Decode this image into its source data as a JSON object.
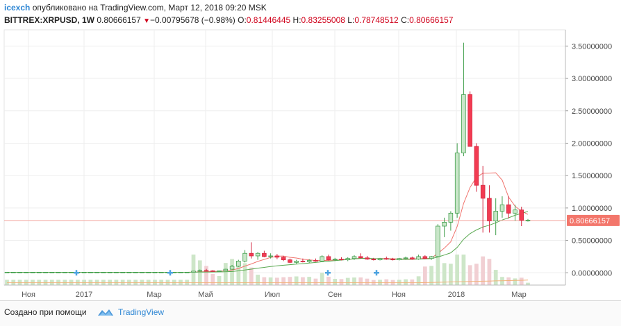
{
  "header": {
    "user": "icexch",
    "published_text": "опубликовано на TradingView.com, Март 12, 2018 09:20 MSK",
    "symbol": "BITTREX:XRPUSD, 1W",
    "last": "0.80666157",
    "down_arrow": "▼",
    "change": "−0.00795678 (−0.98%)",
    "o_label": "O:",
    "o_val": "0.81446445",
    "h_label": "H:",
    "h_val": "0.83255008",
    "l_label": "L:",
    "l_val": "0.78748512",
    "c_label": "C:",
    "c_val": "0.80666157"
  },
  "footer": {
    "created_with": "Создано при помощи",
    "brand": "TradingView"
  },
  "colors": {
    "up": "#c9e6c9",
    "up_border": "#3f9e4a",
    "down": "#f23b52",
    "down_border": "#d3263f",
    "ma_fast": "#f0746e",
    "ma_slow": "#58a84f",
    "ma_vol": "#f2b27a",
    "vol_up": "#cde6c8",
    "vol_down": "#f1cfd3",
    "price_line": "#f4a8a0",
    "price_label": "#f3766b",
    "brand": "#2f87d4"
  },
  "chart_data": {
    "type": "candlestick",
    "x_tick_labels": [
      "Ноя",
      "2017",
      "Мар",
      "Май",
      "Июл",
      "Сен",
      "Ноя",
      "2018",
      "Мар"
    ],
    "y_tick_labels": [
      "3.50000000",
      "3.00000000",
      "2.50000000",
      "2.00000000",
      "1.50000000",
      "1.00000000",
      "0.50000000",
      "0.00000000"
    ],
    "y_ticks": [
      3.5,
      3.0,
      2.5,
      2.0,
      1.5,
      1.0,
      0.5,
      0.0
    ],
    "ylim": [
      -0.19,
      3.75
    ],
    "last_price": 0.80666157,
    "last_price_label": "0.80666157",
    "grid": true,
    "ohlc_approx_weekly": [
      [
        0.008,
        0.009,
        0.007,
        0.008
      ],
      [
        0.008,
        0.009,
        0.007,
        0.008
      ],
      [
        0.008,
        0.009,
        0.007,
        0.008
      ],
      [
        0.008,
        0.009,
        0.007,
        0.008
      ],
      [
        0.008,
        0.009,
        0.007,
        0.008
      ],
      [
        0.008,
        0.009,
        0.007,
        0.008
      ],
      [
        0.008,
        0.009,
        0.007,
        0.008
      ],
      [
        0.008,
        0.009,
        0.007,
        0.008
      ],
      [
        0.008,
        0.009,
        0.007,
        0.008
      ],
      [
        0.008,
        0.009,
        0.007,
        0.008
      ],
      [
        0.008,
        0.009,
        0.007,
        0.008
      ],
      [
        0.008,
        0.009,
        0.007,
        0.008
      ],
      [
        0.008,
        0.009,
        0.007,
        0.008
      ],
      [
        0.008,
        0.009,
        0.007,
        0.008
      ],
      [
        0.008,
        0.009,
        0.007,
        0.008
      ],
      [
        0.008,
        0.009,
        0.007,
        0.008
      ],
      [
        0.008,
        0.009,
        0.007,
        0.008
      ],
      [
        0.008,
        0.009,
        0.007,
        0.008
      ],
      [
        0.008,
        0.009,
        0.007,
        0.008
      ],
      [
        0.008,
        0.009,
        0.007,
        0.008
      ],
      [
        0.008,
        0.009,
        0.007,
        0.008
      ],
      [
        0.008,
        0.009,
        0.007,
        0.008
      ],
      [
        0.008,
        0.009,
        0.007,
        0.008
      ],
      [
        0.008,
        0.009,
        0.007,
        0.008
      ],
      [
        0.008,
        0.009,
        0.007,
        0.008
      ],
      [
        0.008,
        0.009,
        0.007,
        0.008
      ],
      [
        0.008,
        0.009,
        0.007,
        0.008
      ],
      [
        0.008,
        0.009,
        0.007,
        0.008
      ],
      [
        0.008,
        0.009,
        0.007,
        0.008
      ],
      [
        0.008,
        0.03,
        0.006,
        0.025
      ],
      [
        0.025,
        0.05,
        0.02,
        0.035
      ],
      [
        0.035,
        0.06,
        0.028,
        0.03
      ],
      [
        0.03,
        0.04,
        0.025,
        0.028
      ],
      [
        0.028,
        0.035,
        0.024,
        0.03
      ],
      [
        0.03,
        0.06,
        0.028,
        0.055
      ],
      [
        0.055,
        0.12,
        0.05,
        0.1
      ],
      [
        0.1,
        0.2,
        0.09,
        0.18
      ],
      [
        0.18,
        0.35,
        0.16,
        0.3
      ],
      [
        0.3,
        0.47,
        0.22,
        0.26
      ],
      [
        0.26,
        0.32,
        0.2,
        0.3
      ],
      [
        0.3,
        0.34,
        0.24,
        0.25
      ],
      [
        0.25,
        0.3,
        0.22,
        0.26
      ],
      [
        0.26,
        0.29,
        0.21,
        0.24
      ],
      [
        0.24,
        0.26,
        0.18,
        0.2
      ],
      [
        0.2,
        0.22,
        0.15,
        0.16
      ],
      [
        0.16,
        0.2,
        0.14,
        0.18
      ],
      [
        0.18,
        0.22,
        0.16,
        0.17
      ],
      [
        0.17,
        0.21,
        0.15,
        0.19
      ],
      [
        0.19,
        0.22,
        0.17,
        0.18
      ],
      [
        0.18,
        0.27,
        0.17,
        0.25
      ],
      [
        0.25,
        0.28,
        0.19,
        0.2
      ],
      [
        0.2,
        0.23,
        0.18,
        0.21
      ],
      [
        0.21,
        0.24,
        0.19,
        0.2
      ],
      [
        0.2,
        0.24,
        0.18,
        0.22
      ],
      [
        0.22,
        0.27,
        0.2,
        0.25
      ],
      [
        0.25,
        0.3,
        0.22,
        0.23
      ],
      [
        0.23,
        0.26,
        0.2,
        0.21
      ],
      [
        0.21,
        0.23,
        0.19,
        0.2
      ],
      [
        0.2,
        0.23,
        0.19,
        0.22
      ],
      [
        0.22,
        0.25,
        0.2,
        0.21
      ],
      [
        0.21,
        0.23,
        0.19,
        0.2
      ],
      [
        0.2,
        0.23,
        0.19,
        0.22
      ],
      [
        0.22,
        0.25,
        0.2,
        0.23
      ],
      [
        0.23,
        0.25,
        0.2,
        0.21
      ],
      [
        0.21,
        0.28,
        0.2,
        0.25
      ],
      [
        0.25,
        0.27,
        0.21,
        0.22
      ],
      [
        0.22,
        0.26,
        0.2,
        0.25
      ],
      [
        0.25,
        0.75,
        0.24,
        0.72
      ],
      [
        0.72,
        0.85,
        0.55,
        0.78
      ],
      [
        0.78,
        0.95,
        0.65,
        0.92
      ],
      [
        0.92,
        2.0,
        0.85,
        1.85
      ],
      [
        1.85,
        3.55,
        1.8,
        2.75
      ],
      [
        2.75,
        2.8,
        1.95,
        1.95
      ],
      [
        1.95,
        2.0,
        1.25,
        1.35
      ],
      [
        1.35,
        1.65,
        0.62,
        1.15
      ],
      [
        1.15,
        1.35,
        0.62,
        0.8
      ],
      [
        0.8,
        1.15,
        0.58,
        0.95
      ],
      [
        0.95,
        1.18,
        0.85,
        1.05
      ],
      [
        1.05,
        1.18,
        0.84,
        0.92
      ],
      [
        0.92,
        1.05,
        0.8,
        0.97
      ],
      [
        0.97,
        1.02,
        0.72,
        0.81
      ],
      [
        0.81,
        0.83,
        0.79,
        0.81
      ]
    ]
  }
}
